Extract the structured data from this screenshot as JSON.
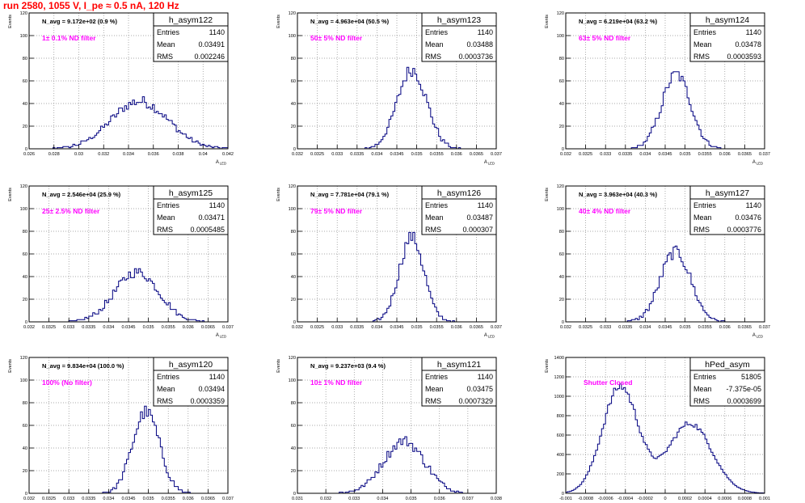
{
  "title": "run 2580,  1055 V, I_pe ≈ 0.5 nA, 120 Hz",
  "colors": {
    "hist": "#000080",
    "label": "#ff00ff",
    "title": "#ff0000",
    "grid": "#8c8c8c"
  },
  "stat_labels": {
    "entries": "Entries",
    "mean": "Mean",
    "rms": "RMS"
  },
  "y_axis_title": "Events",
  "x_axis_title": "A",
  "x_axis_subscript": "LED",
  "chart_data": [
    {
      "type": "bar",
      "name": "h_asym122",
      "navg": "N_avg = 9.172e+02 (0.9 %)",
      "label": "1± 0.1% ND filter",
      "entries": "1140",
      "mean": "0.03491",
      "rms": "0.002246",
      "xlim": [
        0.026,
        0.042
      ],
      "ylim": [
        0,
        120
      ],
      "xticks": [
        0.026,
        0.028,
        0.03,
        0.032,
        0.034,
        0.036,
        0.038,
        0.04,
        0.042
      ],
      "xtick_labels": [
        "0.026",
        "0.028",
        "0.03",
        "0.032",
        "0.034",
        "0.036",
        "0.038",
        "0.04",
        "0.042"
      ],
      "yticks": [
        0,
        20,
        40,
        60,
        80,
        100,
        120
      ],
      "ytick_labels": [
        "0",
        "20",
        "40",
        "60",
        "80",
        "100",
        "120"
      ],
      "shape": "gauss",
      "gmean": 0.0349,
      "gsigma": 0.0023,
      "peak": 42,
      "nbins": 100
    },
    {
      "type": "bar",
      "name": "h_asym123",
      "navg": "N_avg = 4.963e+04 (50.5 %)",
      "label": "50± 5% ND filter",
      "entries": "1140",
      "mean": "0.03488",
      "rms": "0.0003736",
      "xlim": [
        0.032,
        0.037
      ],
      "ylim": [
        0,
        120
      ],
      "xticks": [
        0.032,
        0.0325,
        0.033,
        0.0335,
        0.034,
        0.0345,
        0.035,
        0.0355,
        0.036,
        0.0365,
        0.037
      ],
      "xtick_labels": [
        "0.032",
        "0.0325",
        "0.033",
        "0.0335",
        "0.034",
        "0.0345",
        "0.035",
        "0.0355",
        "0.036",
        "0.0365",
        "0.037"
      ],
      "yticks": [
        0,
        20,
        40,
        60,
        80,
        100,
        120
      ],
      "ytick_labels": [
        "0",
        "20",
        "40",
        "60",
        "80",
        "100",
        "120"
      ],
      "shape": "gauss",
      "gmean": 0.03488,
      "gsigma": 0.00037,
      "peak": 70,
      "nbins": 100
    },
    {
      "type": "bar",
      "name": "h_asym124",
      "navg": "N_avg = 6.219e+04 (63.2 %)",
      "label": "63± 5% ND filter",
      "entries": "1140",
      "mean": "0.03478",
      "rms": "0.0003593",
      "xlim": [
        0.032,
        0.037
      ],
      "ylim": [
        0,
        120
      ],
      "xticks": [
        0.032,
        0.0325,
        0.033,
        0.0335,
        0.034,
        0.0345,
        0.035,
        0.0355,
        0.036,
        0.0365,
        0.037
      ],
      "xtick_labels": [
        "0.032",
        "0.0325",
        "0.033",
        "0.0335",
        "0.034",
        "0.0345",
        "0.035",
        "0.0355",
        "0.036",
        "0.0365",
        "0.037"
      ],
      "yticks": [
        0,
        20,
        40,
        60,
        80,
        100,
        120
      ],
      "ytick_labels": [
        "0",
        "20",
        "40",
        "60",
        "80",
        "100",
        "120"
      ],
      "shape": "gauss",
      "gmean": 0.03478,
      "gsigma": 0.00036,
      "peak": 66,
      "nbins": 100
    },
    {
      "type": "bar",
      "name": "h_asym125",
      "navg": "N_avg = 2.546e+04 (25.9 %)",
      "label": "25± 2.5% ND filter",
      "entries": "1140",
      "mean": "0.03471",
      "rms": "0.0005485",
      "xlim": [
        0.032,
        0.037
      ],
      "ylim": [
        0,
        120
      ],
      "xticks": [
        0.032,
        0.0325,
        0.033,
        0.0335,
        0.034,
        0.0345,
        0.035,
        0.0355,
        0.036,
        0.0365,
        0.037
      ],
      "xtick_labels": [
        "0.032",
        "0.0325",
        "0.033",
        "0.0335",
        "0.034",
        "0.0345",
        "0.035",
        "0.0355",
        "0.036",
        "0.0365",
        "0.037"
      ],
      "yticks": [
        0,
        20,
        40,
        60,
        80,
        100,
        120
      ],
      "ytick_labels": [
        "0",
        "20",
        "40",
        "60",
        "80",
        "100",
        "120"
      ],
      "shape": "gauss",
      "gmean": 0.03471,
      "gsigma": 0.00055,
      "peak": 44,
      "nbins": 100
    },
    {
      "type": "bar",
      "name": "h_asym126",
      "navg": "N_avg = 7.781e+04 (79.1 %)",
      "label": "79± 5% ND filter",
      "entries": "1140",
      "mean": "0.03487",
      "rms": "0.000307",
      "xlim": [
        0.032,
        0.037
      ],
      "ylim": [
        0,
        120
      ],
      "xticks": [
        0.032,
        0.0325,
        0.033,
        0.0335,
        0.034,
        0.0345,
        0.035,
        0.0355,
        0.036,
        0.0365,
        0.037
      ],
      "xtick_labels": [
        "0.032",
        "0.0325",
        "0.033",
        "0.0335",
        "0.034",
        "0.0345",
        "0.035",
        "0.0355",
        "0.036",
        "0.0365",
        "0.037"
      ],
      "yticks": [
        0,
        20,
        40,
        60,
        80,
        100,
        120
      ],
      "ytick_labels": [
        "0",
        "20",
        "40",
        "60",
        "80",
        "100",
        "120"
      ],
      "shape": "gauss",
      "gmean": 0.03487,
      "gsigma": 0.00031,
      "peak": 75,
      "nbins": 100
    },
    {
      "type": "bar",
      "name": "h_asym127",
      "navg": "N_avg = 3.963e+04 (40.3 %)",
      "label": "40± 4% ND filter",
      "entries": "1140",
      "mean": "0.03476",
      "rms": "0.0003776",
      "xlim": [
        0.032,
        0.037
      ],
      "ylim": [
        0,
        120
      ],
      "xticks": [
        0.032,
        0.0325,
        0.033,
        0.0335,
        0.034,
        0.0345,
        0.035,
        0.0355,
        0.036,
        0.0365,
        0.037
      ],
      "xtick_labels": [
        "0.032",
        "0.0325",
        "0.033",
        "0.0335",
        "0.034",
        "0.0345",
        "0.035",
        "0.0355",
        "0.036",
        "0.0365",
        "0.037"
      ],
      "yticks": [
        0,
        20,
        40,
        60,
        80,
        100,
        120
      ],
      "ytick_labels": [
        "0",
        "20",
        "40",
        "60",
        "80",
        "100",
        "120"
      ],
      "shape": "gauss",
      "gmean": 0.03476,
      "gsigma": 0.00038,
      "peak": 62,
      "nbins": 100
    },
    {
      "type": "bar",
      "name": "h_asym120",
      "navg": "N_avg = 9.834e+04 (100.0 %)",
      "label": "100% (No filter)",
      "entries": "1140",
      "mean": "0.03494",
      "rms": "0.0003359",
      "xlim": [
        0.032,
        0.037
      ],
      "ylim": [
        0,
        120
      ],
      "xticks": [
        0.032,
        0.0325,
        0.033,
        0.0335,
        0.034,
        0.0345,
        0.035,
        0.0355,
        0.036,
        0.0365,
        0.037
      ],
      "xtick_labels": [
        "0.032",
        "0.0325",
        "0.033",
        "0.0335",
        "0.034",
        "0.0345",
        "0.035",
        "0.0355",
        "0.036",
        "0.0365",
        "0.037"
      ],
      "yticks": [
        0,
        20,
        40,
        60,
        80,
        100,
        120
      ],
      "ytick_labels": [
        "0",
        "20",
        "40",
        "60",
        "80",
        "100",
        "120"
      ],
      "shape": "gauss",
      "gmean": 0.03494,
      "gsigma": 0.00034,
      "peak": 72,
      "nbins": 100
    },
    {
      "type": "bar",
      "name": "h_asym121",
      "navg": "N_avg = 9.237e+03 (9.4 %)",
      "label": "10± 1% ND filter",
      "entries": "1140",
      "mean": "0.03475",
      "rms": "0.0007329",
      "xlim": [
        0.031,
        0.038
      ],
      "ylim": [
        0,
        120
      ],
      "xticks": [
        0.031,
        0.032,
        0.033,
        0.034,
        0.035,
        0.036,
        0.037,
        0.038
      ],
      "xtick_labels": [
        "0.031",
        "0.032",
        "0.033",
        "0.034",
        "0.035",
        "0.036",
        "0.037",
        "0.038"
      ],
      "yticks": [
        0,
        20,
        40,
        60,
        80,
        100,
        120
      ],
      "ytick_labels": [
        "0",
        "20",
        "40",
        "60",
        "80",
        "100",
        "120"
      ],
      "shape": "gauss",
      "gmean": 0.03475,
      "gsigma": 0.00073,
      "peak": 46,
      "nbins": 100
    },
    {
      "type": "bar",
      "name": "hPed_asym",
      "navg": "",
      "label": "Shutter Closed",
      "entries": "51805",
      "mean": "-7.375e-05",
      "rms": "0.0003699",
      "xlim": [
        -0.001,
        0.001
      ],
      "ylim": [
        0,
        1400
      ],
      "xticks": [
        -0.001,
        -0.0008,
        -0.0006,
        -0.0004,
        -0.0002,
        0,
        0.0002,
        0.0004,
        0.0006,
        0.0008,
        0.001
      ],
      "xtick_labels": [
        "-0.001",
        "-0.0008",
        "-0.0006",
        "-0.0004",
        "-0.0002",
        "0",
        "0.0002",
        "0.0004",
        "0.0006",
        "0.0008",
        "0.001"
      ],
      "yticks": [
        0,
        200,
        400,
        600,
        800,
        1000,
        1200,
        1400
      ],
      "ytick_labels": [
        "0",
        "200",
        "400",
        "600",
        "800",
        "1000",
        "1200",
        "1400"
      ],
      "shape": "double",
      "g1": [
        -0.00045,
        0.00018,
        1100
      ],
      "g2": [
        0.00025,
        0.00022,
        720
      ],
      "nbins": 100
    }
  ]
}
